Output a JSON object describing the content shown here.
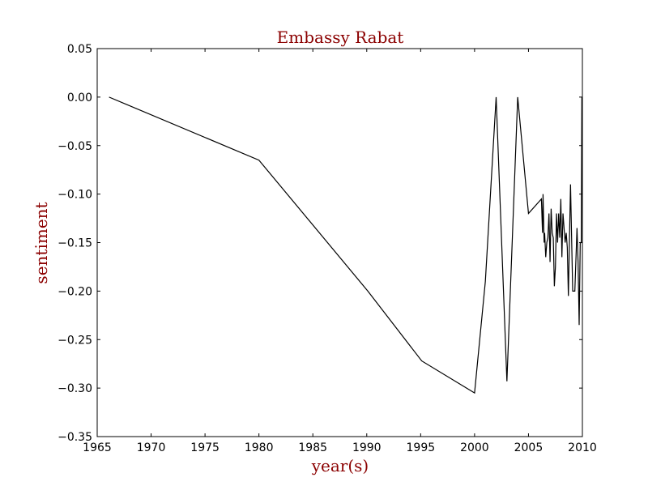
{
  "chart_data": {
    "type": "line",
    "title": "Embassy Rabat",
    "xlabel": "year(s)",
    "ylabel": "sentiment",
    "xlim": [
      1965,
      2010
    ],
    "ylim": [
      -0.35,
      0.05
    ],
    "xticks": [
      1965,
      1970,
      1975,
      1980,
      1985,
      1990,
      1995,
      2000,
      2005,
      2010
    ],
    "xtick_labels": [
      "1965",
      "1970",
      "1975",
      "1980",
      "1985",
      "1990",
      "1995",
      "2000",
      "2005",
      "2010"
    ],
    "yticks": [
      0.05,
      0.0,
      -0.05,
      -0.1,
      -0.15,
      -0.2,
      -0.25,
      -0.3,
      -0.35
    ],
    "ytick_labels": [
      "0.05",
      "0.00",
      "−0.05",
      "−0.10",
      "−0.15",
      "−0.20",
      "−0.25",
      "−0.30",
      "−0.35"
    ],
    "grid": false,
    "line_color": "#000000",
    "label_color": "#8b0000",
    "series": [
      {
        "x": [
          1966.1,
          1980.0,
          1990.1,
          1995.1,
          2000.0,
          2001.0,
          2002.0,
          2003.0,
          2004.0,
          2005.0,
          2006.2,
          2006.3,
          2006.35,
          2006.45,
          2006.5,
          2006.6,
          2006.7,
          2006.8,
          2006.9,
          2007.0,
          2007.1,
          2007.2,
          2007.3,
          2007.4,
          2007.5,
          2007.6,
          2007.7,
          2007.8,
          2007.9,
          2008.0,
          2008.1,
          2008.2,
          2008.3,
          2008.4,
          2008.5,
          2008.6,
          2008.7,
          2008.9,
          2009.1,
          2009.3,
          2009.5,
          2009.6,
          2009.7,
          2009.8,
          2009.9,
          2009.95,
          2010.0
        ],
        "y": [
          0.0,
          -0.065,
          -0.2,
          -0.272,
          -0.305,
          -0.19,
          0.0,
          -0.293,
          0.0,
          -0.12,
          -0.105,
          -0.14,
          -0.1,
          -0.15,
          -0.14,
          -0.165,
          -0.15,
          -0.145,
          -0.12,
          -0.17,
          -0.115,
          -0.14,
          -0.145,
          -0.195,
          -0.175,
          -0.12,
          -0.15,
          -0.12,
          -0.145,
          -0.105,
          -0.165,
          -0.12,
          -0.135,
          -0.15,
          -0.14,
          -0.155,
          -0.205,
          -0.09,
          -0.2,
          -0.2,
          -0.135,
          -0.17,
          -0.235,
          -0.15,
          -0.15,
          0.0,
          -0.07
        ]
      }
    ]
  }
}
